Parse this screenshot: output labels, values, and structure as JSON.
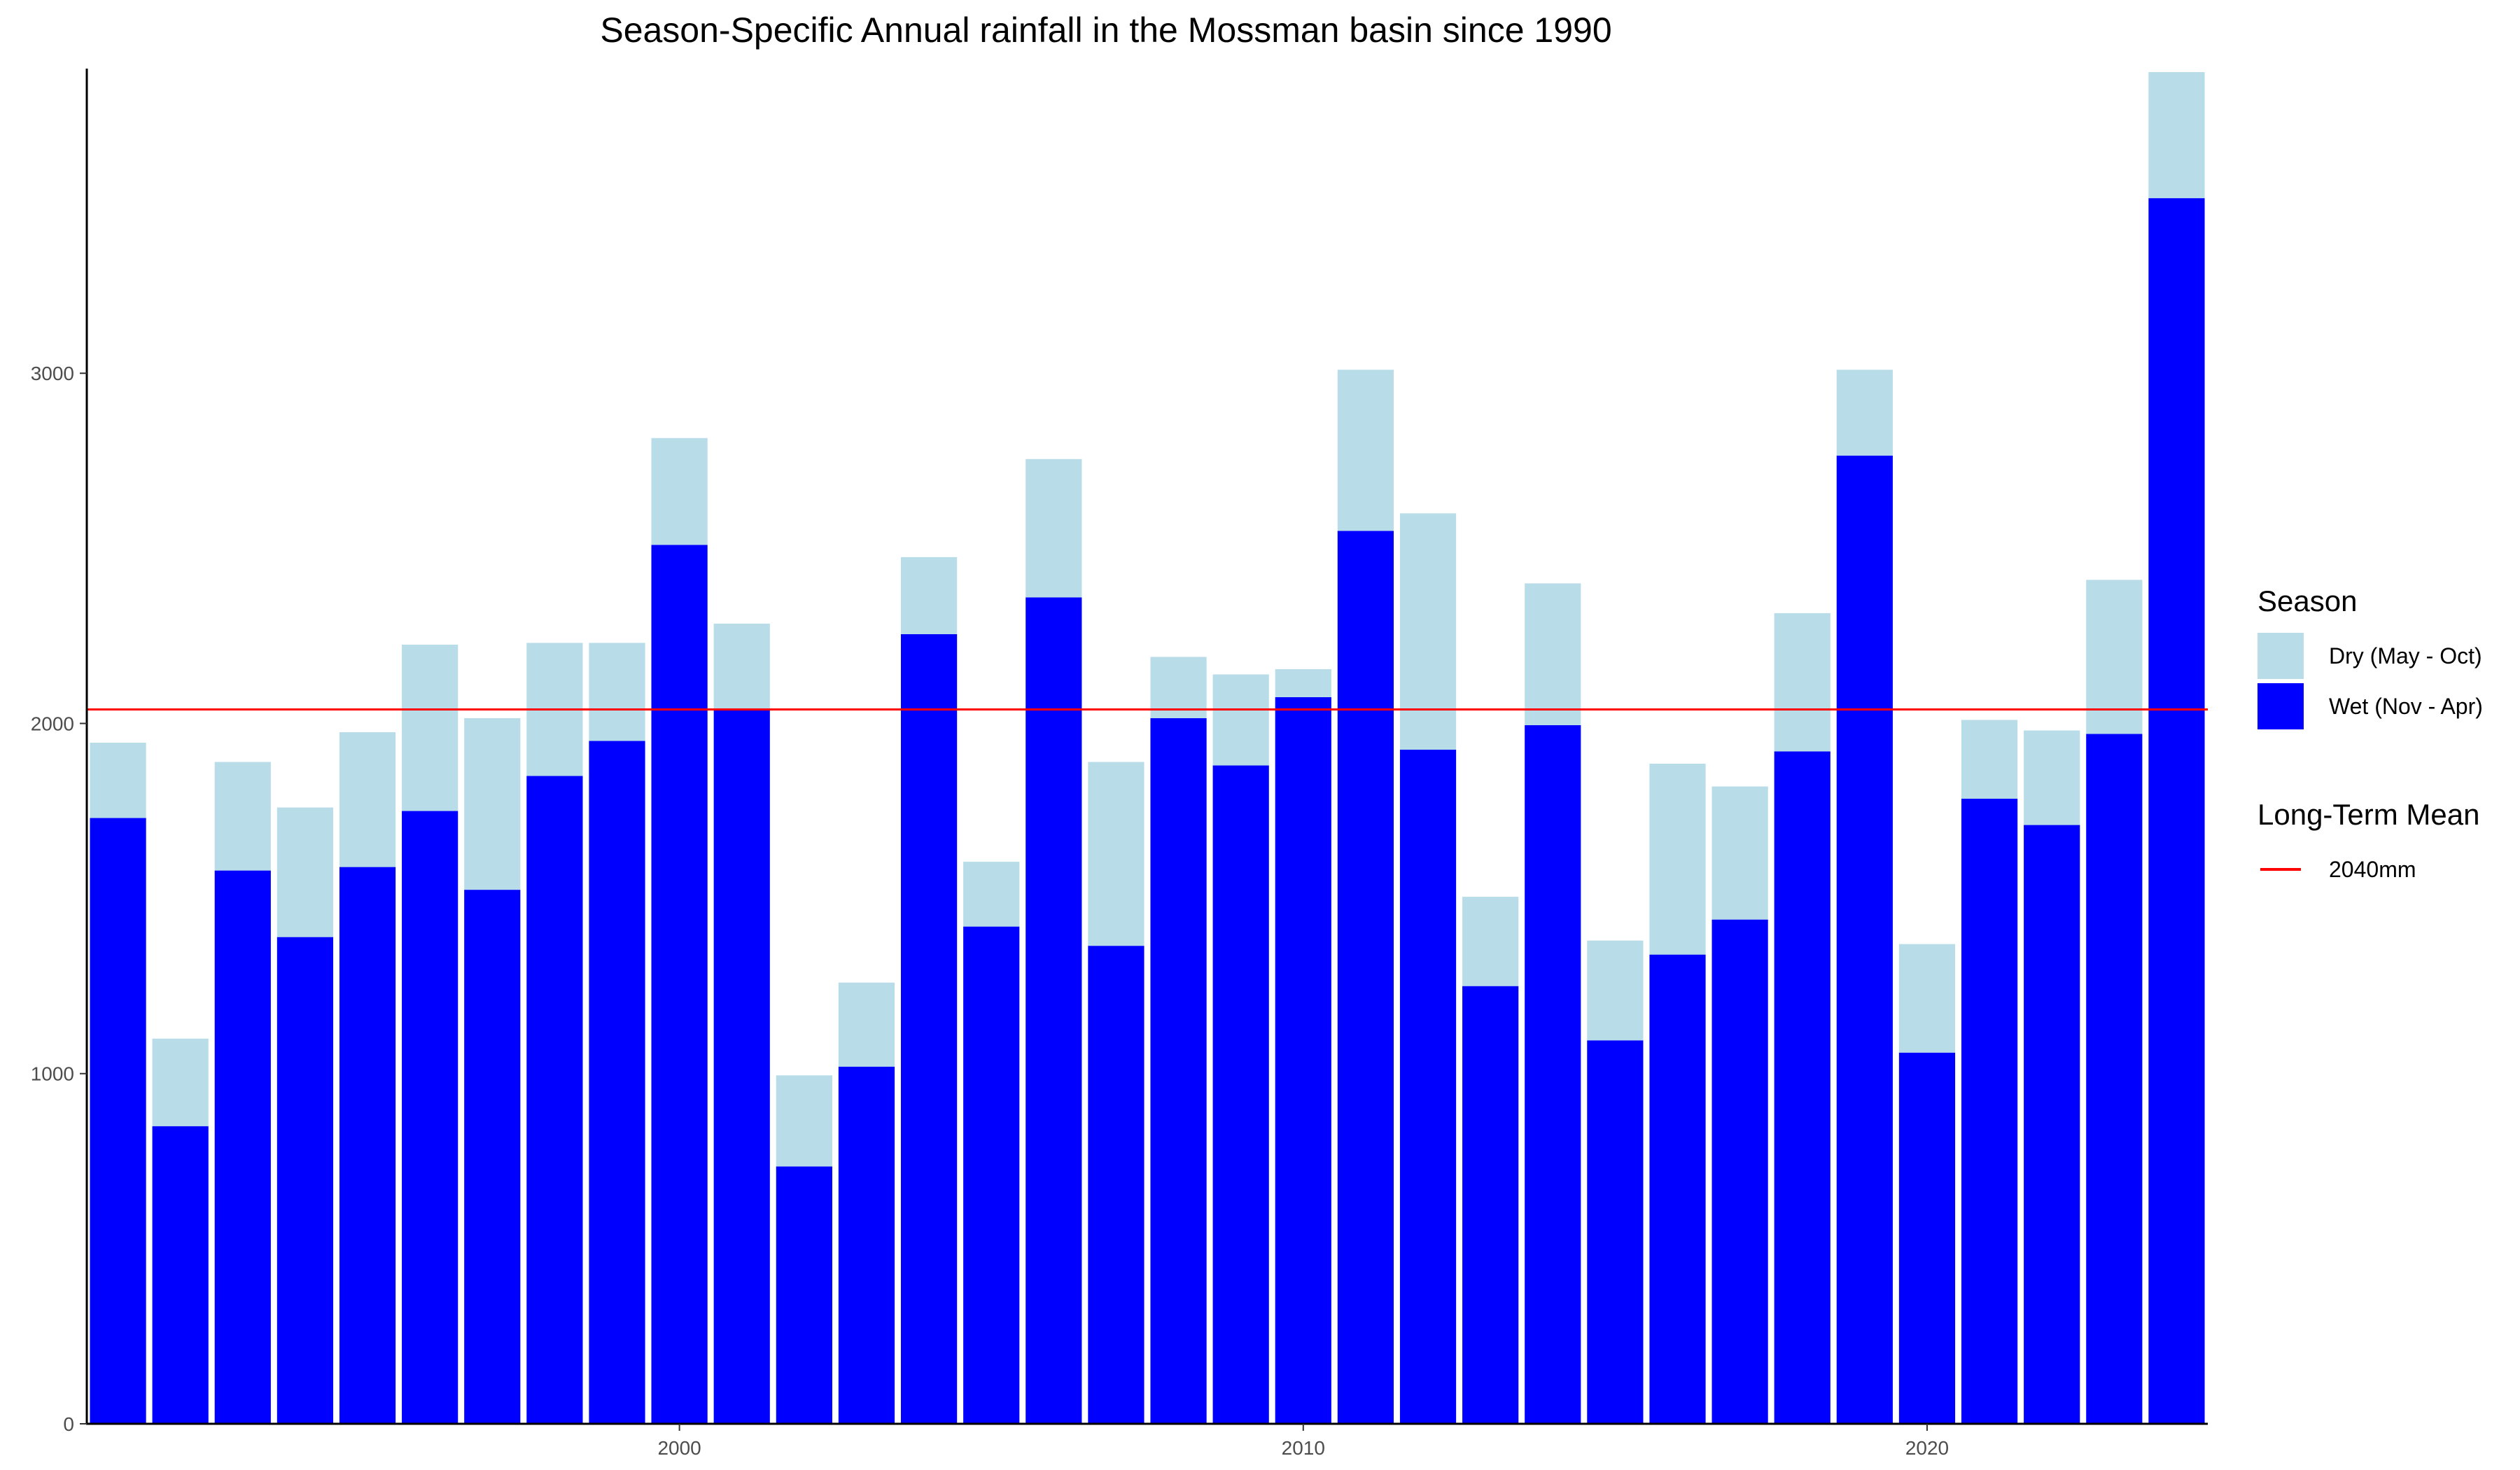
{
  "chart_data": {
    "type": "bar",
    "stacked": true,
    "title": "Season-Specific Annual rainfall in the Mossman basin since 1990",
    "xlabel": "",
    "ylabel": "",
    "x": [
      1991,
      1992,
      1993,
      1994,
      1995,
      1996,
      1997,
      1998,
      1999,
      2000,
      2001,
      2002,
      2003,
      2004,
      2005,
      2006,
      2007,
      2008,
      2009,
      2010,
      2011,
      2012,
      2013,
      2014,
      2015,
      2016,
      2017,
      2018,
      2019,
      2020,
      2021,
      2022,
      2023,
      2024
    ],
    "x_ticks": [
      2000,
      2010,
      2020
    ],
    "y_ticks": [
      0,
      1000,
      2000,
      3000
    ],
    "xlim": [
      1990.5,
      2024.5
    ],
    "ylim": [
      0,
      3870
    ],
    "grid": false,
    "series": [
      {
        "name": "Wet (Nov - Apr)",
        "color": "#0000ff",
        "values": [
          1730,
          850,
          1580,
          1390,
          1590,
          1750,
          1525,
          1850,
          1950,
          2510,
          2040,
          735,
          1020,
          2255,
          1420,
          2360,
          1365,
          2015,
          1880,
          2075,
          2550,
          1925,
          1250,
          1995,
          1095,
          1340,
          1440,
          1920,
          2765,
          1060,
          1785,
          1710,
          1970,
          3500
        ]
      },
      {
        "name": "Dry (May - Oct)",
        "color": "#b8dde9",
        "values": [
          215,
          250,
          310,
          370,
          385,
          475,
          490,
          380,
          280,
          305,
          245,
          260,
          240,
          220,
          185,
          395,
          525,
          175,
          260,
          80,
          460,
          675,
          255,
          405,
          285,
          545,
          380,
          395,
          245,
          310,
          225,
          270,
          440,
          360
        ]
      }
    ],
    "legend": {
      "position": "right",
      "season_title": "Season",
      "season_items": [
        "Dry (May - Oct)",
        "Wet (Nov - Apr)"
      ],
      "mean_title": "Long-Term Mean",
      "mean_label": "2040mm"
    },
    "reference_line": {
      "value": 2040,
      "color": "#ff0000"
    }
  }
}
